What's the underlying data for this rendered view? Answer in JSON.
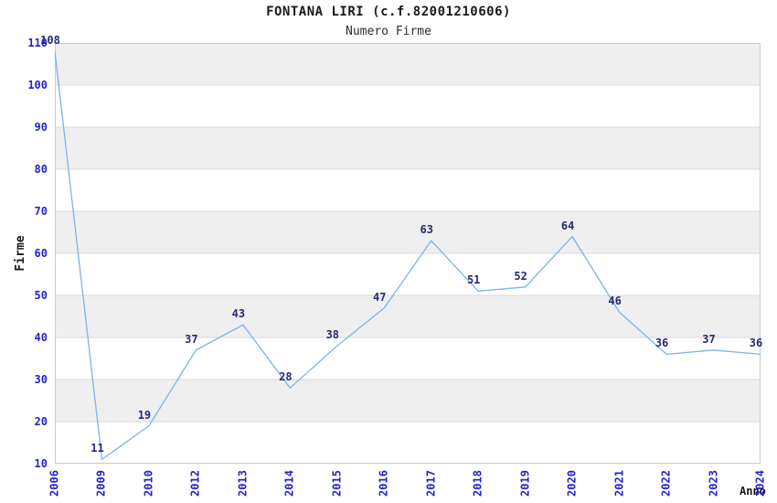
{
  "chart_data": {
    "type": "line",
    "title": "FONTANA LIRI (c.f.82001210606)",
    "subtitle": "Numero Firme",
    "xlabel": "Anno",
    "ylabel": "Firme",
    "categories": [
      "2006",
      "2009",
      "2010",
      "2012",
      "2013",
      "2014",
      "2015",
      "2016",
      "2017",
      "2018",
      "2019",
      "2020",
      "2021",
      "2022",
      "2023",
      "2024"
    ],
    "values": [
      108,
      11,
      19,
      37,
      43,
      28,
      38,
      47,
      63,
      51,
      52,
      64,
      46,
      36,
      37,
      36
    ],
    "data_labels": [
      "108",
      "11",
      "19",
      "37",
      "43",
      "28",
      "38",
      "47",
      "63",
      "51",
      "52",
      "64",
      "46",
      "36",
      "37",
      "36"
    ],
    "ylim": [
      10,
      110
    ],
    "ytick_step": 10,
    "yticks": [
      10,
      20,
      30,
      40,
      50,
      60,
      70,
      80,
      90,
      100,
      110
    ],
    "grid": "horizontal-only",
    "legend": "none",
    "markers": "none",
    "colors": {
      "line": "#7fb2e8",
      "tick_label": "#2222cc",
      "data_label": "#28287a",
      "band_fill": "#efefef",
      "gridline": "#d8d8d8",
      "plot_border": "#c9c9c9",
      "title_text": "#1a1a1a",
      "background": "#ffffff"
    }
  }
}
